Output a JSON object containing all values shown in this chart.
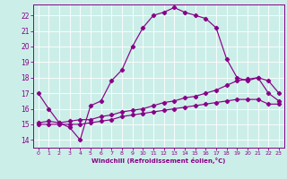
{
  "xlabel": "Windchill (Refroidissement éolien,°C)",
  "bg_color": "#cceee8",
  "grid_color": "#ffffff",
  "line_color": "#880088",
  "x_ticks": [
    0,
    1,
    2,
    3,
    4,
    5,
    6,
    7,
    8,
    9,
    10,
    11,
    12,
    13,
    14,
    15,
    16,
    17,
    18,
    19,
    20,
    21,
    22,
    23
  ],
  "y_ticks": [
    14,
    15,
    16,
    17,
    18,
    19,
    20,
    21,
    22
  ],
  "xlim": [
    -0.5,
    23.5
  ],
  "ylim": [
    13.5,
    22.7
  ],
  "line1_x": [
    0,
    1,
    2,
    3,
    4,
    5,
    6,
    7,
    8,
    9,
    10,
    11,
    12,
    13,
    14,
    15,
    16,
    17,
    18,
    19,
    20,
    21,
    22,
    23
  ],
  "line1_y": [
    17.0,
    16.0,
    15.1,
    14.8,
    14.0,
    16.2,
    16.5,
    17.8,
    18.5,
    20.0,
    21.2,
    22.0,
    22.2,
    22.5,
    22.2,
    22.0,
    21.8,
    21.2,
    19.2,
    18.0,
    17.8,
    18.0,
    17.0,
    16.5
  ],
  "line2_x": [
    0,
    1,
    2,
    3,
    4,
    5,
    6,
    7,
    8,
    9,
    10,
    11,
    12,
    13,
    14,
    15,
    16,
    17,
    18,
    19,
    20,
    21,
    22,
    23
  ],
  "line2_y": [
    15.1,
    15.2,
    15.1,
    15.2,
    15.3,
    15.3,
    15.5,
    15.6,
    15.8,
    15.9,
    16.0,
    16.2,
    16.4,
    16.5,
    16.7,
    16.8,
    17.0,
    17.2,
    17.5,
    17.8,
    17.9,
    18.0,
    17.8,
    17.0
  ],
  "line3_x": [
    0,
    1,
    2,
    3,
    4,
    5,
    6,
    7,
    8,
    9,
    10,
    11,
    12,
    13,
    14,
    15,
    16,
    17,
    18,
    19,
    20,
    21,
    22,
    23
  ],
  "line3_y": [
    15.0,
    15.0,
    15.0,
    15.0,
    15.0,
    15.1,
    15.2,
    15.3,
    15.5,
    15.6,
    15.7,
    15.8,
    15.9,
    16.0,
    16.1,
    16.2,
    16.3,
    16.4,
    16.5,
    16.6,
    16.6,
    16.6,
    16.3,
    16.3
  ]
}
